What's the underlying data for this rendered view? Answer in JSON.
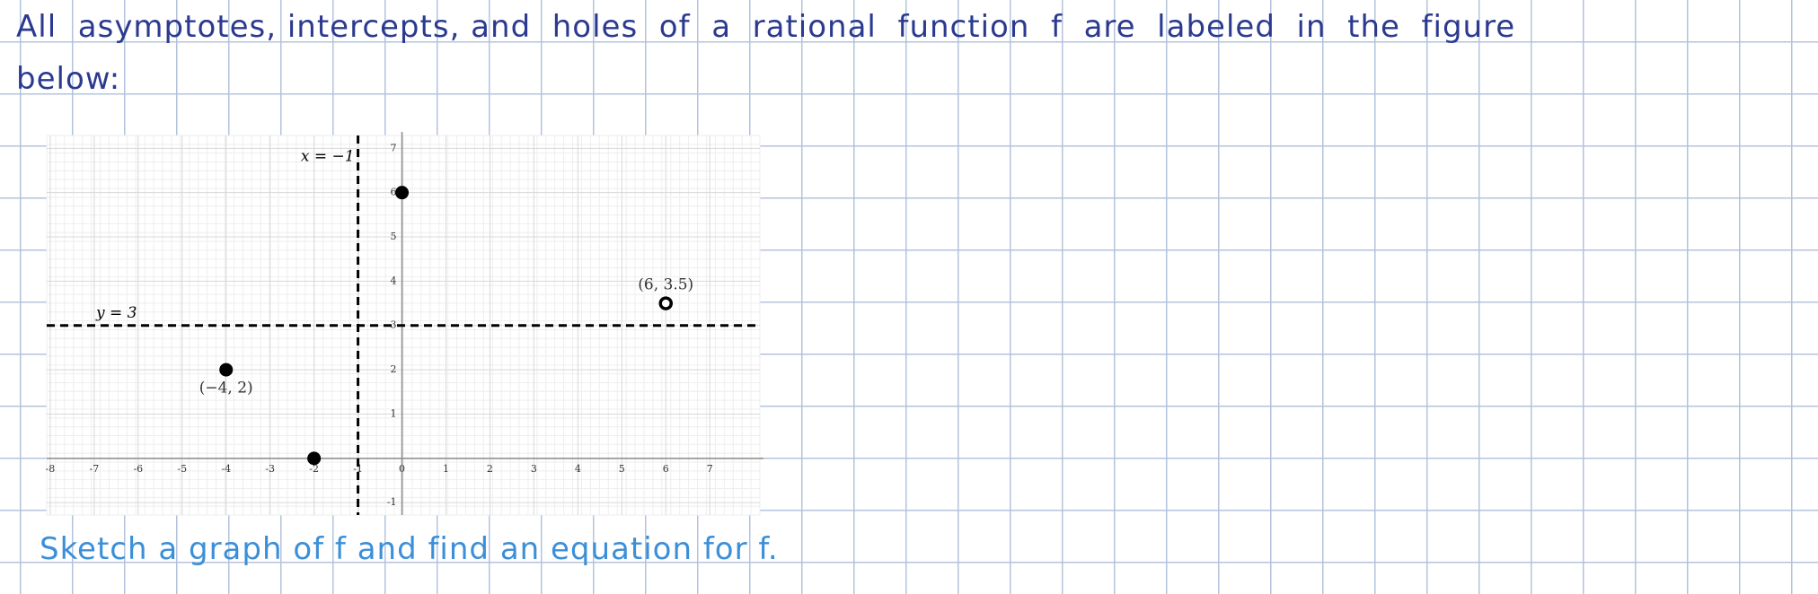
{
  "header": {
    "line1": "All  asymptotes, intercepts, and  holes  of  a  rational  function  f  are  labeled  in  the  figure",
    "line2": "below:"
  },
  "chart_data": {
    "type": "scatter",
    "x": [
      0,
      -4,
      -2,
      6
    ],
    "values": [
      6,
      2,
      0,
      3.5
    ],
    "hollow": [
      false,
      false,
      false,
      true
    ],
    "point_labels": [
      null,
      "(−4, 2)",
      null,
      "(6, 3.5)"
    ],
    "color": "#000000",
    "asymptotes": [
      {
        "label": "x = −1",
        "x": -1
      },
      {
        "label": "y = 3",
        "y": 3
      }
    ],
    "xlim": [
      -8.08,
      8.14
    ],
    "ylim": [
      -1.28,
      7.29
    ],
    "xticks": [
      -8,
      -7,
      -6,
      -5,
      -4,
      -3,
      -2,
      -1,
      0,
      1,
      2,
      3,
      4,
      5,
      6,
      7
    ],
    "yticks": [
      -1,
      1,
      2,
      3,
      4,
      5,
      6,
      7
    ],
    "grid": true
  },
  "footer": {
    "text": "Sketch a graph of f and find an equation for f."
  }
}
